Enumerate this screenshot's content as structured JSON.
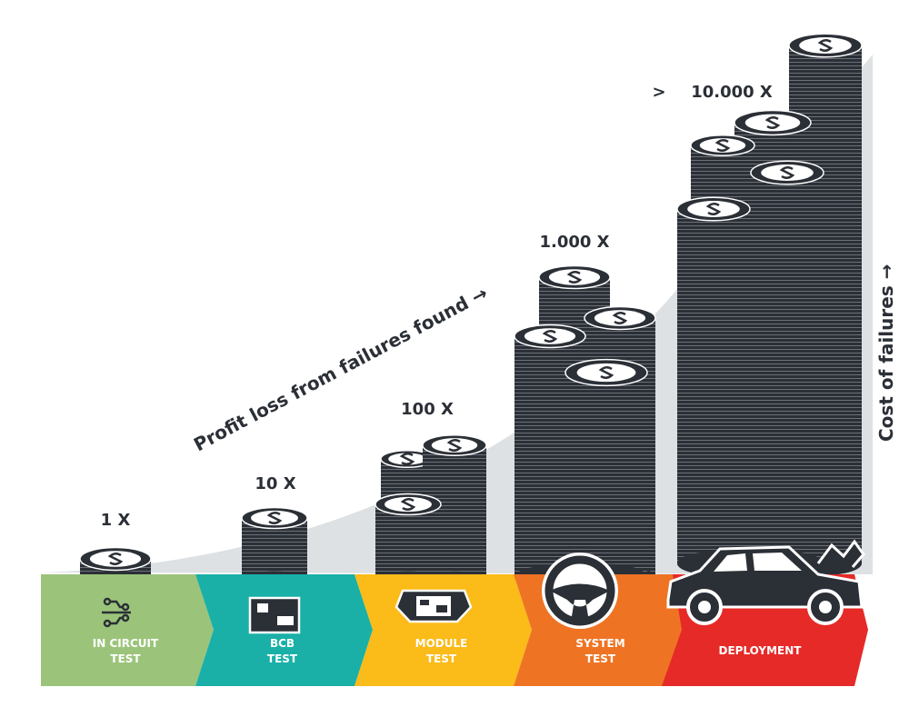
{
  "stages": [
    {
      "multiplier": "1 X",
      "label": [
        "IN CIRCUIT",
        "TEST"
      ]
    },
    {
      "multiplier": "10 X",
      "label": [
        "BCB",
        "TEST"
      ]
    },
    {
      "multiplier": "100 X",
      "label": [
        "MODULE",
        "TEST"
      ]
    },
    {
      "multiplier": "1.000 X",
      "label": [
        "SYSTEM",
        "TEST"
      ]
    },
    {
      "prefix": ">",
      "multiplier": "10.000 X",
      "label": [
        "DEPLOYMENT"
      ]
    }
  ],
  "annotations": {
    "profit_loss": "Profit loss from failures found →",
    "cost": "Cost of failures →"
  }
}
